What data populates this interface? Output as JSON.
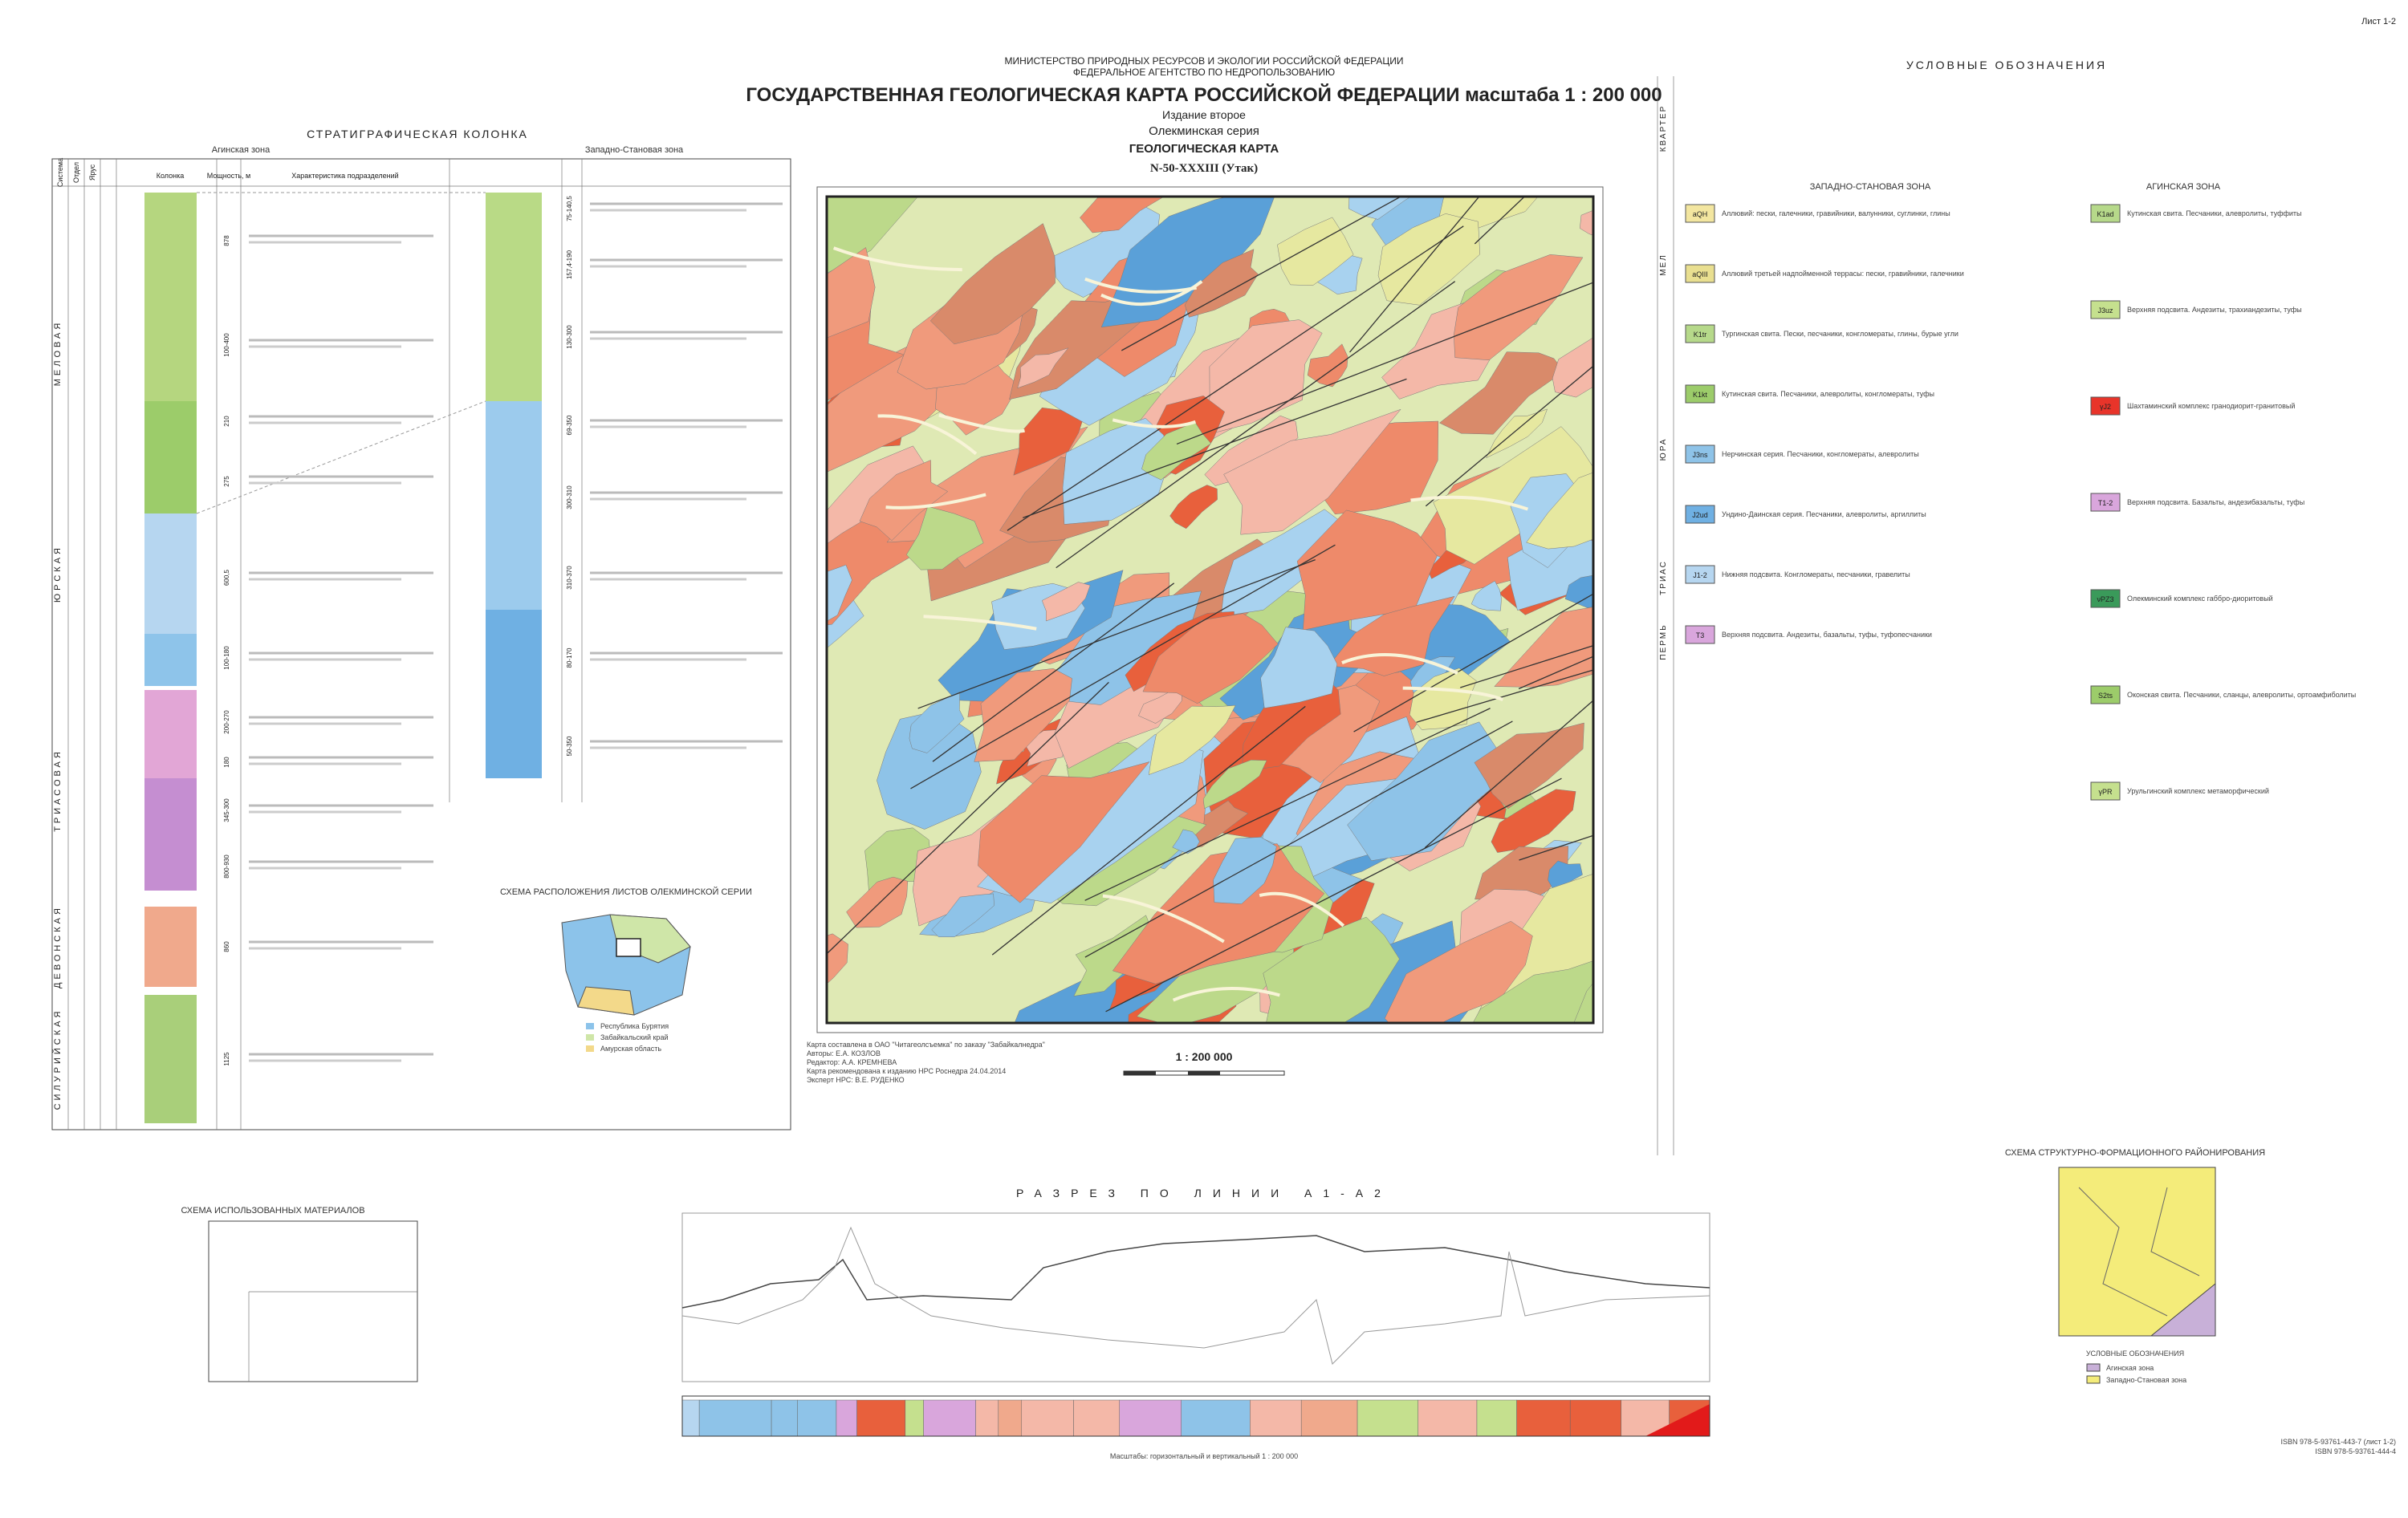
{
  "sheet": "Лист 1-2",
  "header": {
    "ministry": "МИНИСТЕРСТВО ПРИРОДНЫХ РЕСУРСОВ И ЭКОЛОГИИ РОССИЙСКОЙ ФЕДЕРАЦИИ",
    "agency": "ФЕДЕРАЛЬНОЕ АГЕНТСТВО ПО НЕДРОПОЛЬЗОВАНИЮ",
    "title": "ГОСУДАРСТВЕННАЯ ГЕОЛОГИЧЕСКАЯ КАРТА РОССИЙСКОЙ ФЕДЕРАЦИИ масштаба 1 : 200 000",
    "edition": "Издание второе",
    "series": "Олекминская серия",
    "map_type": "ГЕОЛОГИЧЕСКАЯ КАРТА",
    "sheet_code": "N-50-XXXIII (Утак)"
  },
  "strat": {
    "title": "СТРАТИГРАФИЧЕСКАЯ КОЛОНКА",
    "zones": [
      "Агинская зона",
      "Западно-Становая зона"
    ],
    "headers": [
      "Система",
      "Отдел",
      "Ярус",
      "Колонка",
      "Мощность, м",
      "Характеристика подразделений"
    ],
    "systems": [
      "МЕЛОВАЯ",
      "ЮРСКАЯ",
      "ТРИАСОВАЯ",
      "ДЕВОНСКАЯ",
      "СИЛУРИЙСКАЯ"
    ],
    "thickness_left": [
      "878",
      "100-400",
      "210",
      "275",
      "600,5",
      "100-180",
      "200-270",
      "180",
      "345-300",
      "800-930",
      "860",
      "1125"
    ],
    "thickness_right": [
      "75-140,5",
      "157,4-190",
      "130-300",
      "69-350",
      "300-310",
      "310-370",
      "80-170",
      "50-350"
    ]
  },
  "map": {
    "scale": "1 : 200 000",
    "credits": [
      "Карта составлена в ОАО \"Читагеолсъемка\" по заказу \"Забайкалнедра\"",
      "Авторы: Е.А. КОЗЛОВ",
      "Редактор: А.А. КРЕМНЕВА",
      "Карта рекомендована к изданию НРС Роснедра 24.04.2014",
      "Эксперт НРС: В.Е. РУДЕНКО"
    ]
  },
  "location_scheme": {
    "title": "СХЕМА РАСПОЛОЖЕНИЯ ЛИСТОВ ОЛЕКМИНСКОЙ СЕРИИ",
    "items": [
      "Республика Бурятия",
      "Забайкальский край",
      "Амурская область"
    ]
  },
  "materials_scheme": {
    "title": "СХЕМА ИСПОЛЬЗОВАННЫХ МАТЕРИАЛОВ"
  },
  "legend": {
    "title": "УСЛОВНЫЕ ОБОЗНАЧЕНИЯ",
    "zones": [
      "ЗАПАДНО-СТАНОВАЯ ЗОНА",
      "АГИНСКАЯ ЗОНА"
    ],
    "periods": [
      "КВАРТЕР",
      "МЕЛ",
      "ЮРА",
      "ТРИАС",
      "ПЕРМЬ"
    ],
    "left_items": [
      {
        "code": "aQH",
        "text": "Аллювий: пески, галечники, гравийники, валунники, суглинки, глины"
      },
      {
        "code": "aQIII",
        "text": "Аллювий третьей надпойменной террасы: пески, гравийники, галечники"
      },
      {
        "code": "K1tr",
        "text": "Тургинская свита. Пески, песчаники, конгломераты, глины, бурые угли"
      },
      {
        "code": "K1kt",
        "text": "Кутинская свита. Песчаники, алевролиты, конгломераты, туфы"
      },
      {
        "code": "J3ns",
        "text": "Нерчинская серия. Песчаники, конгломераты, алевролиты"
      },
      {
        "code": "J2ud",
        "text": "Ундино-Даинская серия. Песчаники, алевролиты, аргиллиты"
      },
      {
        "code": "J1-2",
        "text": "Нижняя подсвита. Конгломераты, песчаники, гравелиты"
      },
      {
        "code": "T3",
        "text": "Верхняя подсвита. Андезиты, базальты, туфы, туфопесчаники"
      }
    ],
    "right_items": [
      {
        "code": "K1ad",
        "text": "Кутинская свита. Песчаники, алевролиты, туффиты"
      },
      {
        "code": "J3uz",
        "text": "Верхняя подсвита. Андезиты, трахиандезиты, туфы"
      },
      {
        "code": "γJ2",
        "text": "Шахтаминский комплекс гранодиорит-гранитовый"
      },
      {
        "code": "T1-2",
        "text": "Верхняя подсвита. Базальты, андезибазальты, туфы"
      },
      {
        "code": "νPZ3",
        "text": "Олекминский комплекс габбро-диоритовый"
      },
      {
        "code": "S2ts",
        "text": "Оконская свита. Песчаники, сланцы, алевролиты, ортоамфиболиты"
      },
      {
        "code": "γPR",
        "text": "Урульгинский комплекс метаморфический"
      }
    ]
  },
  "section": {
    "title": "РАЗРЕЗ ПО ЛИНИИ А1-А2",
    "scale": "Масштабы: горизонтальный и вертикальный 1 : 200 000"
  },
  "structure_scheme": {
    "title": "СХЕМА СТРУКТУРНО-ФОРМАЦИОННОГО РАЙОНИРОВАНИЯ",
    "legend_title": "УСЛОВНЫЕ ОБОЗНАЧЕНИЯ",
    "items": [
      "Агинская зона",
      "Западно-Становая зона"
    ]
  },
  "isbn": [
    "ISBN 978-5-93761-443-7 (лист 1-2)",
    "ISBN 978-5-93761-444-4"
  ]
}
